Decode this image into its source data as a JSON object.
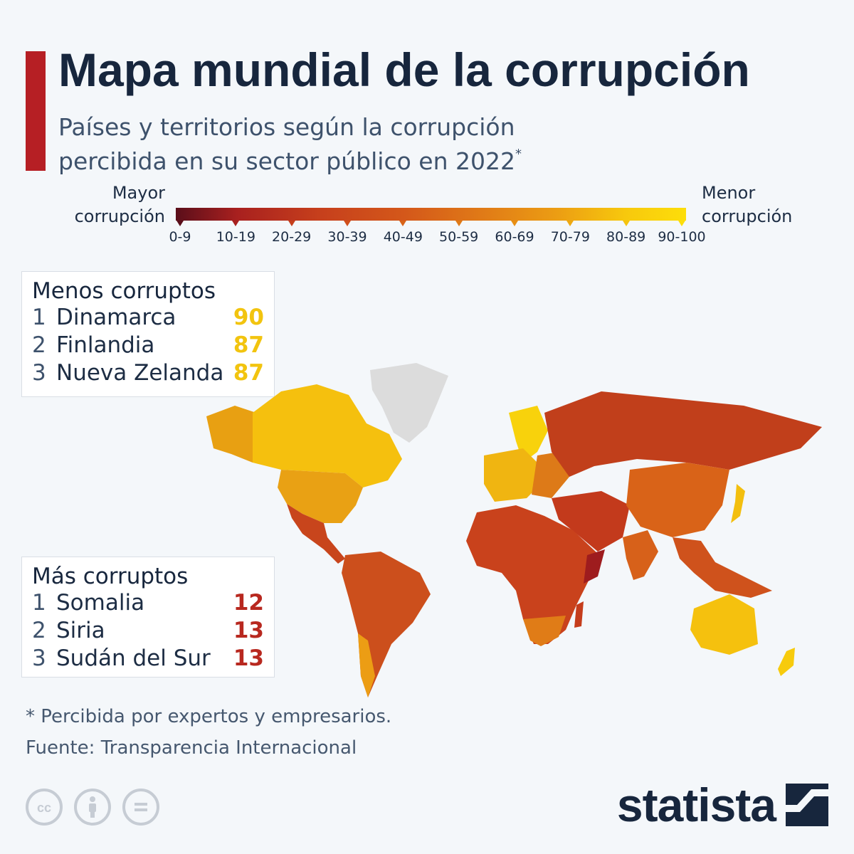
{
  "title": "Mapa mundial de la corrupción",
  "subtitle": {
    "line1": "Países y territorios según la corrupción",
    "line2": "percibida en su sector público en 2022",
    "marker": "*"
  },
  "legend": {
    "left_line1": "Mayor",
    "left_line2": "corrupción",
    "right_line1": "Menor",
    "right_line2": "corrupción",
    "ranges": [
      "0-9",
      "10-19",
      "20-29",
      "30-39",
      "40-49",
      "50-59",
      "60-69",
      "70-79",
      "80-89",
      "90-100"
    ],
    "colors": [
      "#5a0e1a",
      "#a8201f",
      "#c63f1c",
      "#d04f1b",
      "#d86318",
      "#e07a17",
      "#e88f14",
      "#eea912",
      "#f5c30e",
      "#fdde0a"
    ]
  },
  "least_corrupt": {
    "heading": "Menos corruptos",
    "items": [
      {
        "rank": "1",
        "name": "Dinamarca",
        "score": "90"
      },
      {
        "rank": "2",
        "name": "Finlandia",
        "score": "87"
      },
      {
        "rank": "3",
        "name": "Nueva Zelanda",
        "score": "87"
      }
    ]
  },
  "most_corrupt": {
    "heading": "Más corruptos",
    "items": [
      {
        "rank": "1",
        "name": "Somalia",
        "score": "12"
      },
      {
        "rank": "2",
        "name": "Siria",
        "score": "13"
      },
      {
        "rank": "3",
        "name": "Sudán del Sur",
        "score": "13"
      }
    ]
  },
  "footnote": "* Percibida por expertos y empresarios.",
  "source": "Fuente: Transparencia Internacional",
  "brand": "statista",
  "license_icons": [
    "cc-icon",
    "attribution-icon",
    "no-derivatives-icon"
  ]
}
